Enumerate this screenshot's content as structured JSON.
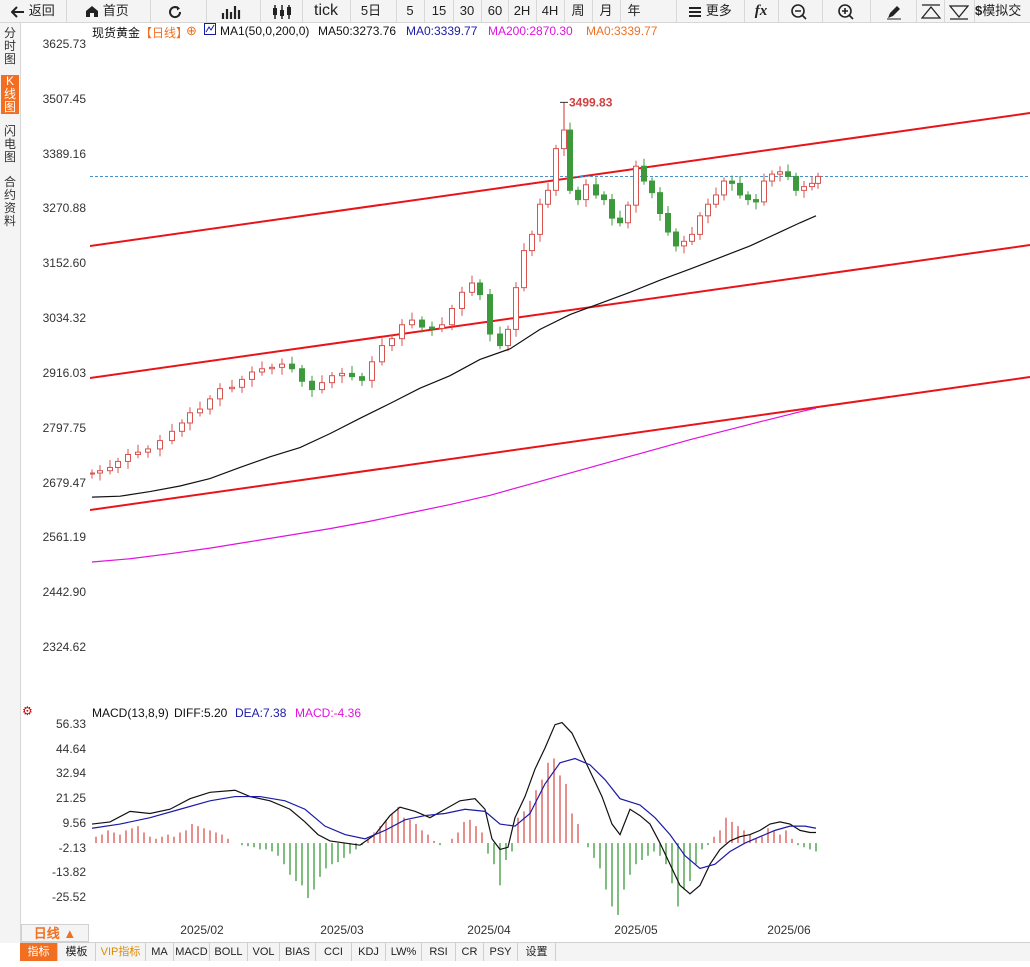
{
  "toolbar": {
    "back": "返回",
    "home": "首页",
    "tick": "tick",
    "day5": "5日",
    "m5": "5",
    "m15": "15",
    "m30": "30",
    "m60": "60",
    "h2": "2H",
    "h4": "4H",
    "week": "周",
    "month": "月",
    "year": "年",
    "more": "更多",
    "fx": "fx",
    "sim": "模拟交"
  },
  "sidebar": {
    "tabs": [
      {
        "label": "分时图"
      },
      {
        "label": "K线图"
      },
      {
        "label": "闪电图"
      },
      {
        "label": "合约资料"
      }
    ]
  },
  "main_chart": {
    "symbol": "现货黄金",
    "period_tag": "【日线】",
    "ma_def": "MA1(50,0,200,0)",
    "ma50": "MA50:3273.76",
    "ma0_a": "MA0:3339.77",
    "ma200": "MA200:2870.30",
    "ma0_b": "MA0:3339.77",
    "high_label": "3499.83",
    "y_ticks": [
      "3625.73",
      "3507.45",
      "3389.16",
      "3270.88",
      "3152.60",
      "3034.32",
      "2916.03",
      "2797.75",
      "2679.47",
      "2561.19",
      "2442.90",
      "2324.62"
    ]
  },
  "macd_chart": {
    "title": "MACD(13,8,9)",
    "diff": "DIFF:5.20",
    "dea": "DEA:7.38",
    "macd": "MACD:-4.36",
    "y_ticks": [
      "56.33",
      "44.64",
      "32.94",
      "21.25",
      "9.56",
      "-2.13",
      "-13.82",
      "-25.52"
    ]
  },
  "x_ticks": [
    "2025/02",
    "2025/03",
    "2025/04",
    "2025/05",
    "2025/06"
  ],
  "period_button": "日线 ▲",
  "bottom_tabs": [
    "指标",
    "模板",
    "VIP指标",
    "MA",
    "MACD",
    "BOLL",
    "VOL",
    "BIAS",
    "CCI",
    "KDJ",
    "LW%",
    "RSI",
    "CR",
    "PSY",
    "设置"
  ],
  "colors": {
    "up": "#d9534f",
    "down": "#3c9a3c",
    "channel": "#e8141a",
    "ma50": "#111111",
    "ma200": "#e012e0",
    "diff": "#111111",
    "dea": "#1a1aa8",
    "accent": "#f26f21"
  },
  "icons": {
    "back": "back-arrow-icon",
    "home": "home-icon",
    "refresh": "refresh-icon",
    "chart": "bar-chart-icon",
    "candle": "candlestick-icon",
    "more": "menu-icon",
    "zoom_out": "zoom-out-icon",
    "zoom_in": "zoom-in-icon",
    "draw": "pencil-icon",
    "up": "triangle-up-icon",
    "down": "triangle-down-icon",
    "dollar": "dollar-icon",
    "macd_settings": "gear-icon"
  }
}
